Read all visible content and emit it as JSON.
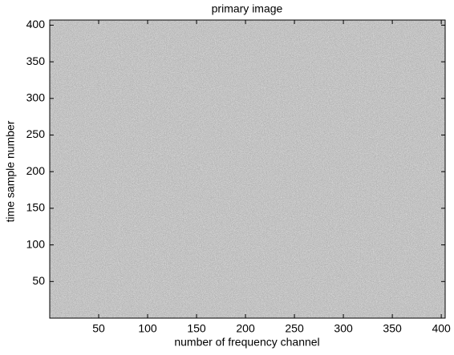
{
  "chart_data": {
    "type": "image",
    "title": "primary image",
    "x_label": "number of frequency channel",
    "y_label": "time sample number",
    "xlim": [
      0,
      404
    ],
    "ylim": [
      0,
      407
    ],
    "xticks": [
      50,
      100,
      150,
      200,
      250,
      300,
      350,
      400
    ],
    "yticks": [
      50,
      100,
      150,
      200,
      250,
      300,
      350,
      400
    ]
  }
}
